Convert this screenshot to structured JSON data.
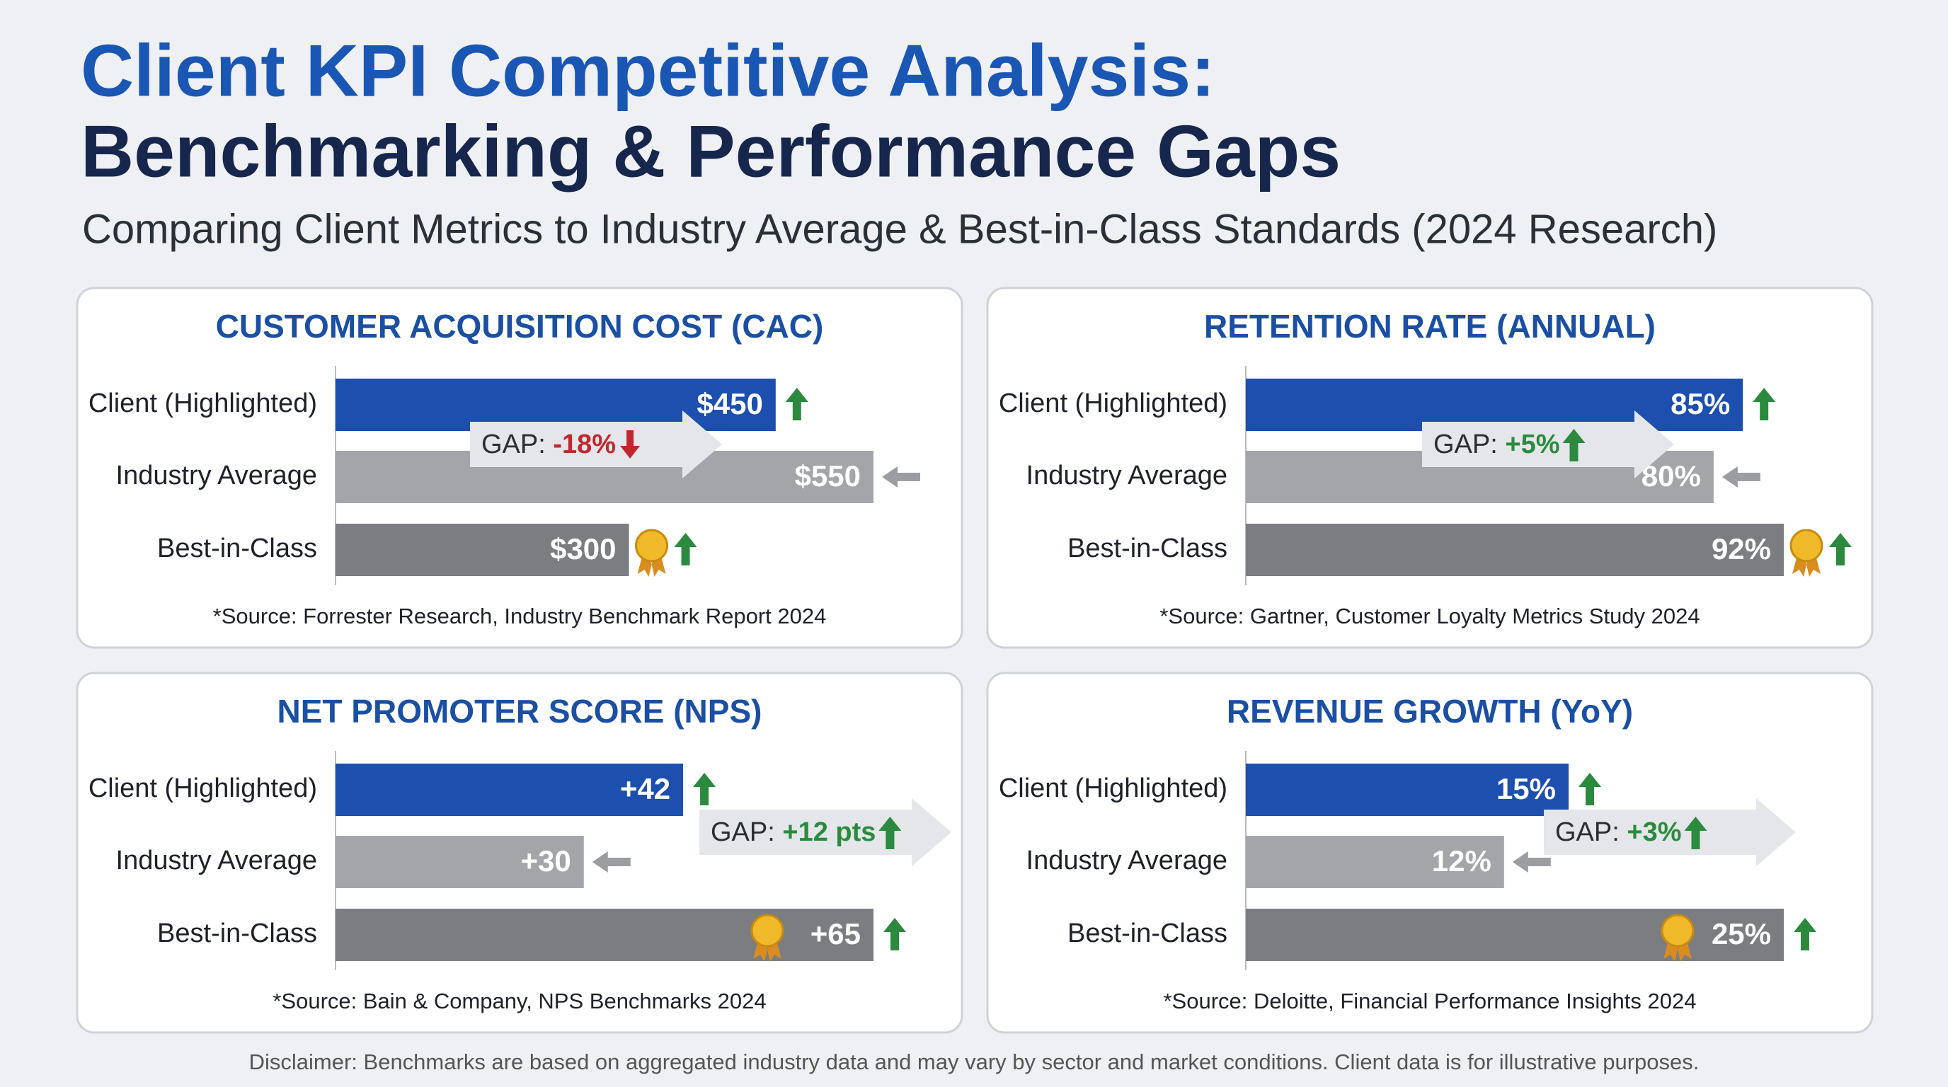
{
  "header": {
    "title_lines": [
      "Client KPI Competitive Analysis:",
      "Benchmarking & Performance Gaps"
    ],
    "subtitle": "Comparing Client Metrics to Industry Average & Best-in-Class Standards (2024 Research)"
  },
  "chart_data": [
    {
      "type": "bar",
      "orientation": "horizontal",
      "title": "CUSTOMER ACQUISITION COST (CAC)",
      "categories": [
        "Client (Highlighted)",
        "Industry Average",
        "Best-in-Class"
      ],
      "values": [
        450,
        550,
        300
      ],
      "value_labels": [
        "$450",
        "$550",
        "$300"
      ],
      "colors": [
        "#1c4fae",
        "#a3a5a9",
        "#7b7d81"
      ],
      "gap": {
        "label": "GAP:",
        "value": "-18%",
        "color": "#c1272d"
      },
      "source": "*Source: Forrester Research, Industry Benchmark Report 2024"
    },
    {
      "type": "bar",
      "orientation": "horizontal",
      "title": "RETENTION RATE (ANNUAL)",
      "categories": [
        "Client (Highlighted)",
        "Industry Average",
        "Best-in-Class"
      ],
      "values": [
        85,
        80,
        92
      ],
      "value_labels": [
        "85%",
        "80%",
        "92%"
      ],
      "colors": [
        "#1c4fae",
        "#a3a5a9",
        "#7b7d81"
      ],
      "gap": {
        "label": "GAP:",
        "value": "+5%",
        "color": "#2b8a3e"
      },
      "source": "*Source: Gartner, Customer Loyalty Metrics Study 2024"
    },
    {
      "type": "bar",
      "orientation": "horizontal",
      "title": "NET PROMOTER SCORE (NPS)",
      "categories": [
        "Client (Highlighted)",
        "Industry Average",
        "Best-in-Class"
      ],
      "values": [
        42,
        30,
        65
      ],
      "value_labels": [
        "+42",
        "+30",
        "+65"
      ],
      "colors": [
        "#1c4fae",
        "#a3a5a9",
        "#7b7d81"
      ],
      "gap": {
        "label": "GAP:",
        "value": "+12 pts",
        "color": "#2b8a3e"
      },
      "source": "*Source: Bain & Company, NPS Benchmarks 2024"
    },
    {
      "type": "bar",
      "orientation": "horizontal",
      "title": "REVENUE GROWTH (YoY)",
      "categories": [
        "Client (Highlighted)",
        "Industry Average",
        "Best-in-Class"
      ],
      "values": [
        15,
        12,
        25
      ],
      "value_labels": [
        "15%",
        "12%",
        "25%"
      ],
      "colors": [
        "#1c4fae",
        "#a3a5a9",
        "#7b7d81"
      ],
      "gap": {
        "label": "GAP:",
        "value": "+3%",
        "color": "#2b8a3e"
      },
      "source": "*Source: Deloitte, Financial Performance Insights 2024"
    }
  ],
  "disclaimer": "Disclaimer: Benchmarks are based on aggregated industry data and may vary by sector and market conditions. Client data is for illustrative purposes."
}
